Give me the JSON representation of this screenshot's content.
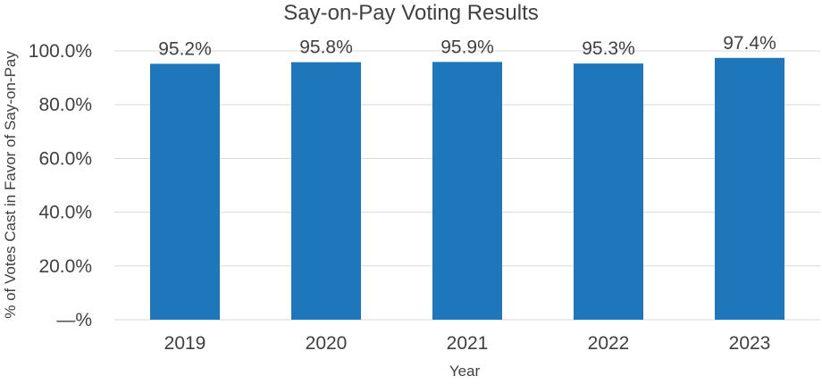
{
  "chart_data": {
    "type": "bar",
    "title": "Say-on-Pay Voting Results",
    "xlabel": "Year",
    "ylabel": "% of Votes Cast in Favor of Say-on-Pay",
    "categories": [
      "2019",
      "2020",
      "2021",
      "2022",
      "2023"
    ],
    "series": [
      {
        "values": [
          95.2,
          95.8,
          95.9,
          95.3,
          97.4
        ]
      }
    ],
    "data_labels": [
      "95.2%",
      "95.8%",
      "95.9%",
      "95.3%",
      "97.4%"
    ],
    "ylim": [
      0,
      100
    ],
    "yticks": [
      0,
      20,
      40,
      60,
      80,
      100
    ],
    "ytick_labels": [
      "—%",
      "20.0%",
      "40.0%",
      "60.0%",
      "80.0%",
      "100.0%"
    ],
    "grid": true,
    "legend": "none",
    "colors": {
      "bar": "#1f77bb",
      "grid": "#d9d9d9",
      "text": "#404040"
    }
  }
}
